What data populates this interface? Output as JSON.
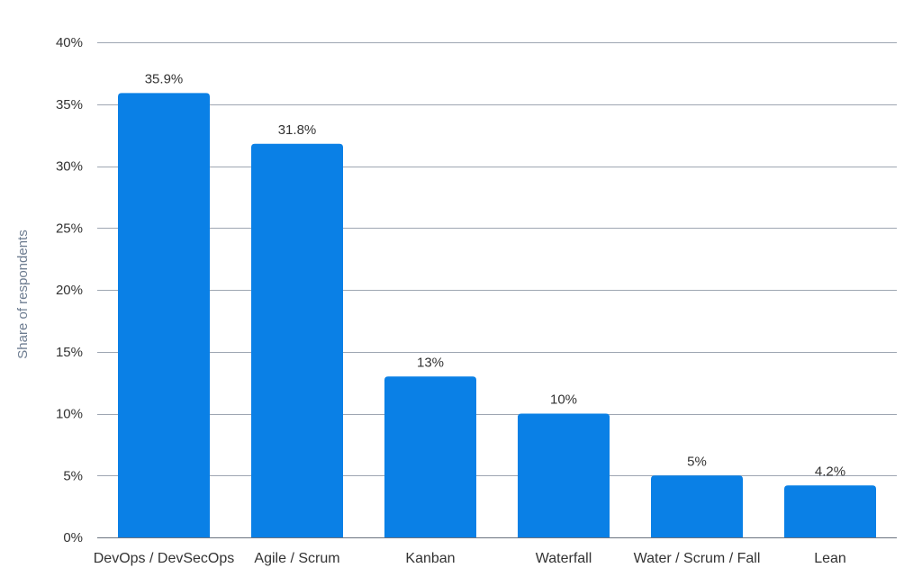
{
  "chart_data": {
    "type": "bar",
    "categories": [
      "DevOps / DevSecOps",
      "Agile / Scrum",
      "Kanban",
      "Waterfall",
      "Water / Scrum / Fall",
      "Lean"
    ],
    "values": [
      35.9,
      31.8,
      13,
      10,
      5,
      4.2
    ],
    "data_labels": [
      "35.9%",
      "31.8%",
      "13%",
      "10%",
      "5%",
      "4.2%"
    ],
    "title": "",
    "xlabel": "",
    "ylabel": "Share of respondents",
    "ylim": [
      0,
      40
    ],
    "yticks": [
      0,
      5,
      10,
      15,
      20,
      25,
      30,
      35,
      40
    ],
    "ytick_labels": [
      "0%",
      "5%",
      "10%",
      "15%",
      "20%",
      "25%",
      "30%",
      "35%",
      "40%"
    ],
    "grid": true,
    "legend": "none",
    "colors": {
      "bar": "#0a80e6",
      "grid": "#9ea6b2",
      "axis_title": "#6e7d91",
      "text": "#333333"
    }
  }
}
